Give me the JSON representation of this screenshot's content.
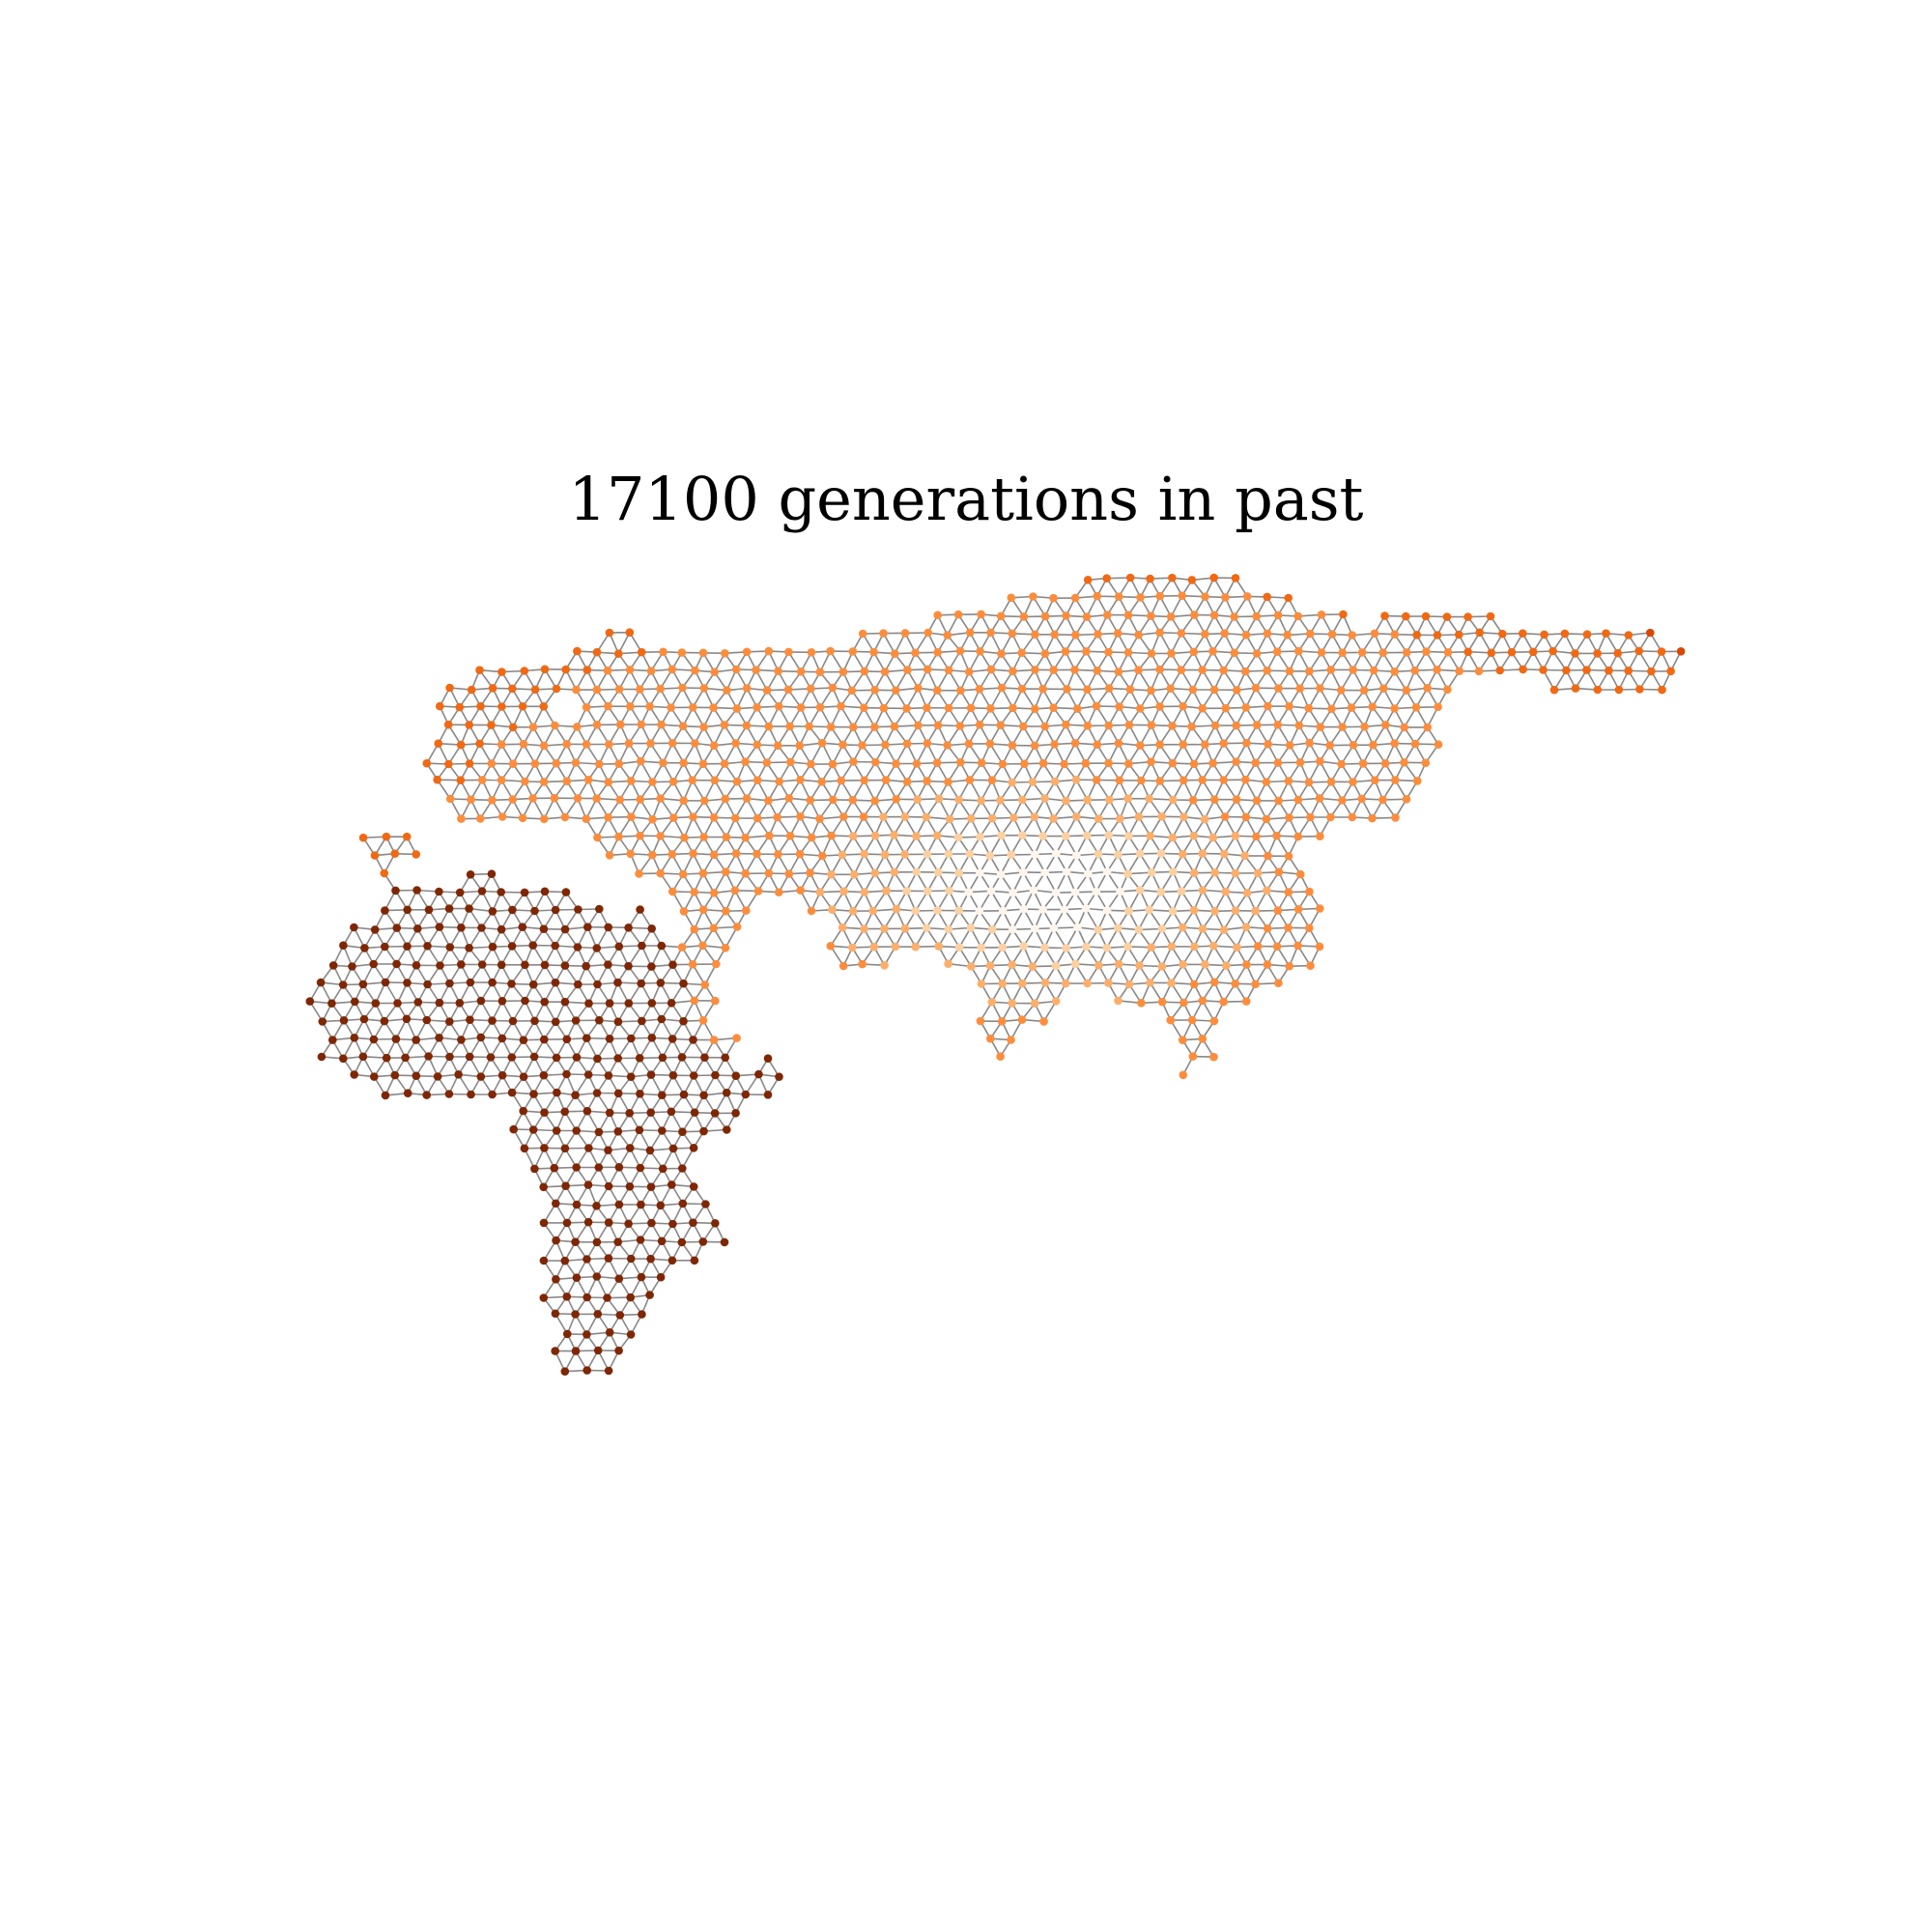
{
  "figure": {
    "title": "17100 generations in past"
  },
  "legend_note": "",
  "colors": {
    "background": "#ffffff",
    "edge": "#888888",
    "node_scale": [
      "#7f2704",
      "#a63603",
      "#d94801",
      "#f16913",
      "#fd8d3c",
      "#fdae6b",
      "#fdd0a2",
      "#fff5eb"
    ]
  }
}
